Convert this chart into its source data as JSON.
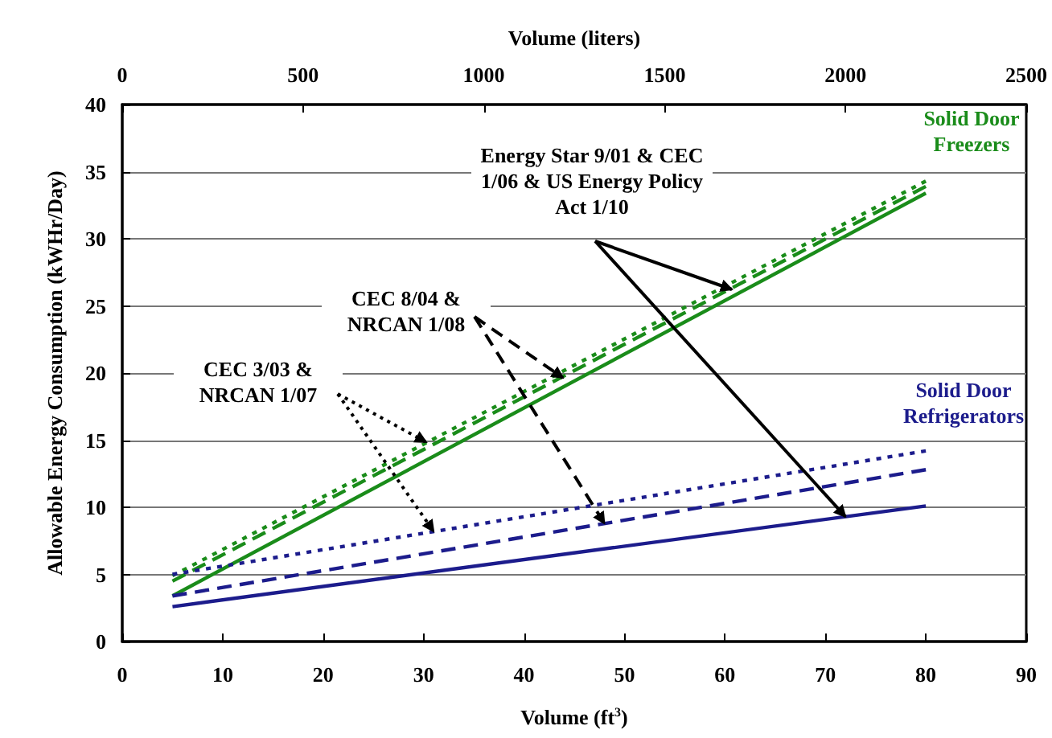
{
  "chart_data": {
    "type": "line",
    "xlabel": "Volume (ft$^{3}$)",
    "ylabel": "Allowable Energy Consumption (kWHr/Day)",
    "x2label": "Volume (liters)",
    "x": [
      5,
      80
    ],
    "series": [
      {
        "color": "#1a8c1a",
        "line_style": "dotted",
        "values": [
          4.9,
          34.3
        ]
      },
      {
        "color": "#1a8c1a",
        "line_style": "dashed",
        "values": [
          4.5,
          33.9
        ]
      },
      {
        "color": "#1a8c1a",
        "line_style": "solid",
        "values": [
          3.4,
          33.4
        ]
      },
      {
        "color": "#1c1c8c",
        "line_style": "dotted",
        "values": [
          5.0,
          14.2
        ]
      },
      {
        "color": "#1c1c8c",
        "line_style": "dashed",
        "values": [
          3.4,
          12.8
        ]
      },
      {
        "color": "#1c1c8c",
        "line_style": "solid",
        "values": [
          2.6,
          10.1
        ]
      }
    ],
    "xlim": [
      0,
      90
    ],
    "xticks": [
      0,
      10,
      20,
      30,
      40,
      50,
      60,
      70,
      80,
      90
    ],
    "x2lim": [
      0,
      2500
    ],
    "x2ticks": [
      0,
      500,
      1000,
      1500,
      2000,
      2500
    ],
    "ylim": [
      0,
      40
    ],
    "yticks": [
      0,
      5,
      10,
      15,
      20,
      25,
      30,
      35,
      40
    ],
    "grid": "y",
    "marker": "none",
    "annotations": [
      {
        "text": "Energy Star 9/01 & CEC 1/06 & US Energy Policy Act 1/10",
        "x": 72,
        "y": 9.3
      },
      {
        "text": "CEC 8/04 & NRCAN 1/08",
        "x": 48,
        "y": 8.8
      },
      {
        "text": "CEC 3/03 & NRCAN 1/07",
        "x": 31,
        "y": 8.2
      },
      "Solid Door Freezers",
      "Solid Door Refrigerators"
    ]
  }
}
